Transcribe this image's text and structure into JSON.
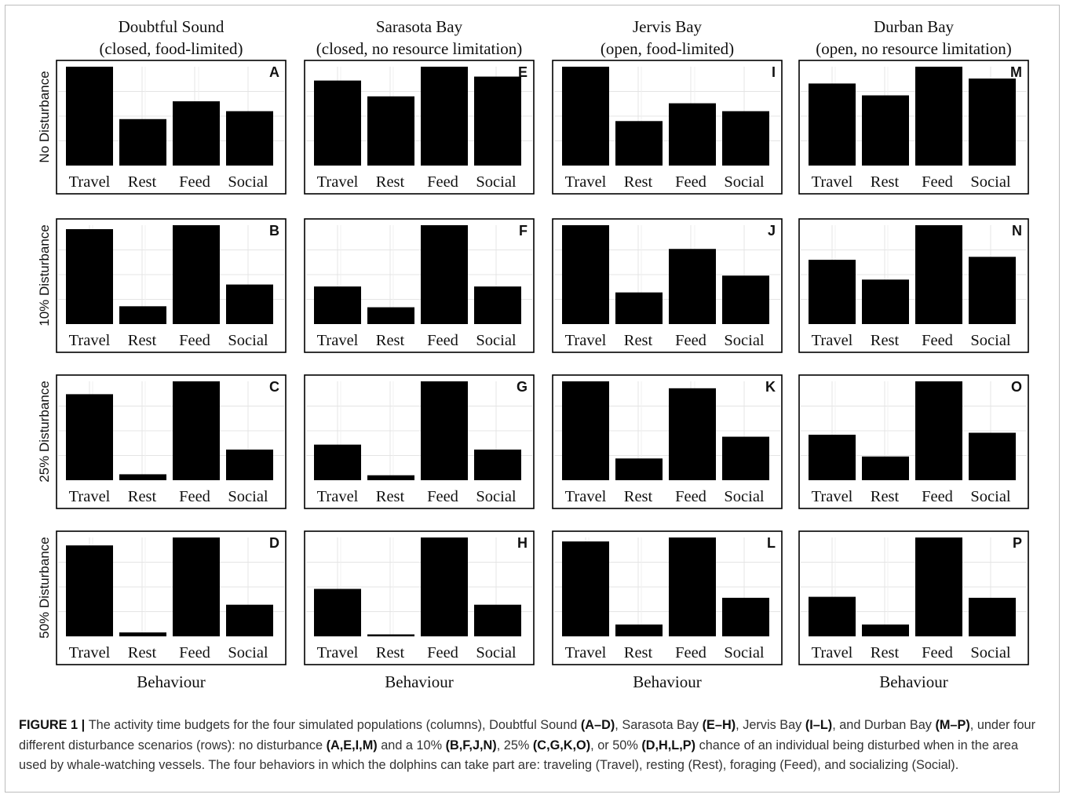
{
  "column_titles": [
    {
      "line1": "Doubtful Sound",
      "line2": "(closed, food-limited)"
    },
    {
      "line1": "Sarasota Bay",
      "line2": "(closed, no resource limitation)"
    },
    {
      "line1": "Jervis Bay",
      "line2": "(open, food-limited)"
    },
    {
      "line1": "Durban Bay",
      "line2": "(open, no resource limitation)"
    }
  ],
  "row_labels": [
    "No Disturbance",
    "10% Disturbance",
    "25% Disturbance",
    "50% Disturbance"
  ],
  "x_axis_label": "Behaviour",
  "colors": {
    "bar": "#000000",
    "grid": "#e4e4e4",
    "panel_border": "#000000"
  },
  "chart_data": {
    "type": "bar",
    "categories": [
      "Travel",
      "Rest",
      "Feed",
      "Social"
    ],
    "panels": [
      {
        "letter": "A",
        "values": [
          1.0,
          0.47,
          0.65,
          0.55
        ]
      },
      {
        "letter": "E",
        "values": [
          0.86,
          0.7,
          1.0,
          0.9
        ]
      },
      {
        "letter": "I",
        "values": [
          1.0,
          0.45,
          0.63,
          0.55
        ]
      },
      {
        "letter": "M",
        "values": [
          0.83,
          0.71,
          1.0,
          0.88
        ]
      },
      {
        "letter": "B",
        "values": [
          0.96,
          0.18,
          1.0,
          0.4
        ]
      },
      {
        "letter": "F",
        "values": [
          0.38,
          0.17,
          1.0,
          0.38
        ]
      },
      {
        "letter": "J",
        "values": [
          1.0,
          0.32,
          0.76,
          0.49
        ]
      },
      {
        "letter": "N",
        "values": [
          0.65,
          0.45,
          1.0,
          0.68
        ]
      },
      {
        "letter": "C",
        "values": [
          0.87,
          0.06,
          1.0,
          0.31
        ]
      },
      {
        "letter": "G",
        "values": [
          0.36,
          0.05,
          1.0,
          0.31
        ]
      },
      {
        "letter": "K",
        "values": [
          1.0,
          0.22,
          0.93,
          0.44
        ]
      },
      {
        "letter": "O",
        "values": [
          0.46,
          0.24,
          1.0,
          0.48
        ]
      },
      {
        "letter": "D",
        "values": [
          0.92,
          0.04,
          1.0,
          0.32
        ]
      },
      {
        "letter": "H",
        "values": [
          0.48,
          0.02,
          1.0,
          0.32
        ]
      },
      {
        "letter": "L",
        "values": [
          0.96,
          0.12,
          1.0,
          0.39
        ]
      },
      {
        "letter": "P",
        "values": [
          0.4,
          0.12,
          1.0,
          0.39
        ]
      }
    ]
  },
  "caption": {
    "segments": [
      {
        "text": "FIGURE 1 | ",
        "bold": true
      },
      {
        "text": "The activity time budgets for the four simulated populations (columns), Doubtful Sound ",
        "bold": false
      },
      {
        "text": "(A–D)",
        "bold": true
      },
      {
        "text": ", Sarasota Bay ",
        "bold": false
      },
      {
        "text": "(E–H)",
        "bold": true
      },
      {
        "text": ", Jervis Bay ",
        "bold": false
      },
      {
        "text": "(I–L)",
        "bold": true
      },
      {
        "text": ", and Durban Bay ",
        "bold": false
      },
      {
        "text": "(M–P)",
        "bold": true
      },
      {
        "text": ", under four different disturbance scenarios (rows): no disturbance ",
        "bold": false
      },
      {
        "text": "(A,E,I,M)",
        "bold": true
      },
      {
        "text": " and a 10% ",
        "bold": false
      },
      {
        "text": "(B,F,J,N)",
        "bold": true
      },
      {
        "text": ", 25% ",
        "bold": false
      },
      {
        "text": "(C,G,K,O)",
        "bold": true
      },
      {
        "text": ", or 50% ",
        "bold": false
      },
      {
        "text": "(D,H,L,P)",
        "bold": true
      },
      {
        "text": " chance of an individual being disturbed when in the area used by whale-watching vessels. The four behaviors in which the dolphins can take part are: traveling (Travel), resting (Rest), foraging (Feed), and socializing (Social).",
        "bold": false
      }
    ]
  }
}
